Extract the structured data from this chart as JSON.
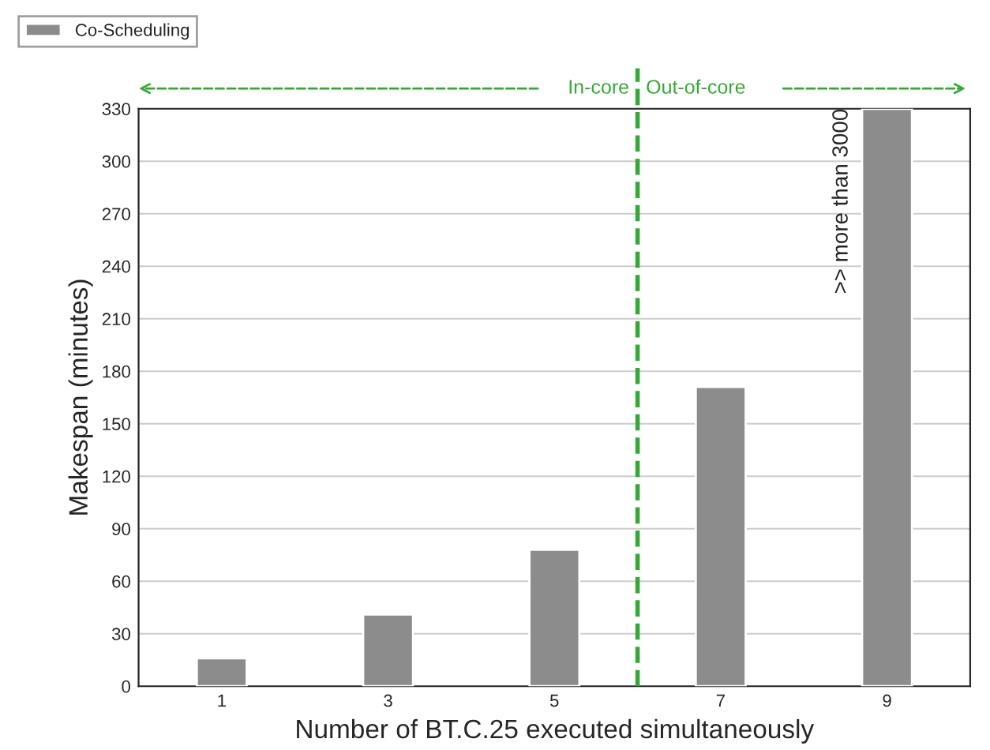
{
  "chart_data": {
    "type": "bar",
    "xlabel": "Number of BT.C.25 executed simultaneously",
    "ylabel": "Makespan (minutes)",
    "x": [
      1,
      3,
      5,
      7,
      9
    ],
    "series": [
      {
        "name": "Co-Scheduling",
        "color": "#8c8c8c",
        "values": [
          16,
          41,
          78,
          171,
          330
        ]
      }
    ],
    "xlim": [
      0,
      10
    ],
    "xticks": [
      1,
      3,
      5,
      7,
      9
    ],
    "ylim": [
      0,
      330
    ],
    "yticks": [
      0,
      30,
      60,
      90,
      120,
      150,
      180,
      210,
      240,
      270,
      300,
      330
    ],
    "ref_lines": [
      {
        "axis": "x",
        "value": 6,
        "color": "#33aa33",
        "line_style": "dashed"
      }
    ],
    "annotations": [
      "In-core",
      "Out-of-core",
      {
        "text": ">> more than 3000",
        "x": 9,
        "y": 330
      }
    ],
    "grid": "y",
    "legend": "top left"
  }
}
